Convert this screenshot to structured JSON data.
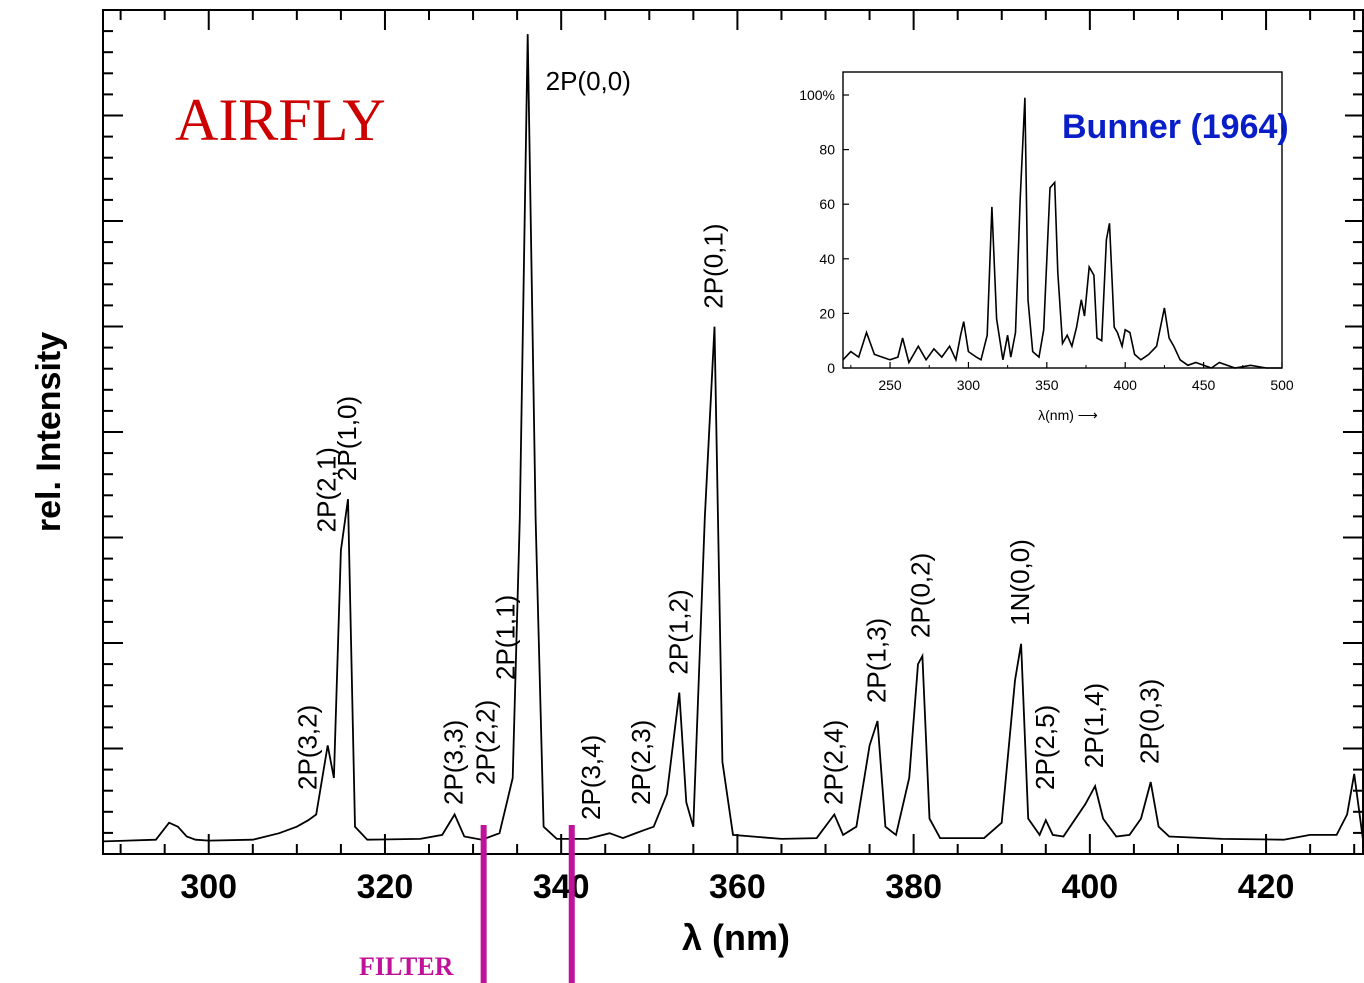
{
  "chart_data": [
    {
      "type": "line",
      "title": "AIRFLY",
      "xlabel": "λ (nm)",
      "ylabel": "rel. Intensity",
      "xlim": [
        288,
        431
      ],
      "ylim": [
        0,
        1.0
      ],
      "x_ticks": [
        300,
        320,
        340,
        360,
        380,
        400,
        420
      ],
      "y_tick_labels_shown": false,
      "series": [
        {
          "x": [
            288,
            294,
            295.5,
            296.5,
            297.5,
            298.5,
            300,
            305,
            308,
            310,
            311.3,
            312.2,
            313.5,
            314.2,
            315,
            315.8,
            316.6,
            318,
            324,
            326.5,
            327.9,
            329,
            331,
            333,
            334.5,
            335.3,
            336.2,
            337.1,
            338,
            339.5,
            343,
            345.5,
            347,
            349.2,
            350.5,
            352,
            353.4,
            354.2,
            355,
            356.3,
            357.4,
            358.3,
            359.5,
            365,
            369,
            371,
            372,
            373.5,
            375,
            375.9,
            376.8,
            378,
            379.5,
            380.5,
            381,
            381.8,
            383,
            388,
            390,
            391.5,
            392.2,
            393,
            394.3,
            395,
            395.8,
            397,
            399.5,
            400.6,
            401.5,
            403,
            404.5,
            405.8,
            406.9,
            407.8,
            409,
            415,
            422,
            425,
            428,
            429.2,
            430,
            431
          ],
          "y": [
            0.002,
            0.004,
            0.025,
            0.02,
            0.008,
            0.004,
            0.003,
            0.004,
            0.012,
            0.02,
            0.028,
            0.035,
            0.12,
            0.08,
            0.36,
            0.423,
            0.02,
            0.004,
            0.005,
            0.01,
            0.035,
            0.008,
            0.004,
            0.012,
            0.08,
            0.4,
            0.995,
            0.4,
            0.02,
            0.005,
            0.005,
            0.012,
            0.006,
            0.015,
            0.02,
            0.06,
            0.185,
            0.05,
            0.02,
            0.4,
            0.635,
            0.1,
            0.01,
            0.005,
            0.006,
            0.035,
            0.01,
            0.02,
            0.12,
            0.15,
            0.02,
            0.01,
            0.08,
            0.22,
            0.23,
            0.03,
            0.006,
            0.006,
            0.025,
            0.2,
            0.245,
            0.03,
            0.01,
            0.028,
            0.01,
            0.008,
            0.048,
            0.07,
            0.03,
            0.008,
            0.01,
            0.03,
            0.075,
            0.02,
            0.008,
            0.005,
            0.004,
            0.01,
            0.01,
            0.035,
            0.085,
            0.004
          ]
        }
      ],
      "annotations": [
        {
          "text": "2P(3,2)",
          "x": 311.3
        },
        {
          "text": "2P(2,1)",
          "x": 313.5
        },
        {
          "text": "2P(1,0)",
          "x": 315.8
        },
        {
          "text": "2P(3,3)",
          "x": 327.9
        },
        {
          "text": "2P(2,2)",
          "x": 331.5
        },
        {
          "text": "2P(1,1)",
          "x": 333.8
        },
        {
          "text": "2P(0,0)",
          "x": 337.1
        },
        {
          "text": "2P(3,4)",
          "x": 343.5
        },
        {
          "text": "2P(2,3)",
          "x": 349.2
        },
        {
          "text": "2P(1,2)",
          "x": 353.4
        },
        {
          "text": "2P(0,1)",
          "x": 357.4
        },
        {
          "text": "2P(2,4)",
          "x": 371
        },
        {
          "text": "2P(1,3)",
          "x": 375.9
        },
        {
          "text": "2P(0,2)",
          "x": 380.9
        },
        {
          "text": "1N(0,0)",
          "x": 392.2
        },
        {
          "text": "2P(2,5)",
          "x": 395
        },
        {
          "text": "2P(1,4)",
          "x": 400.6
        },
        {
          "text": "2P(0,3)",
          "x": 406.9
        }
      ],
      "filter": {
        "label": "FILTER",
        "range": [
          331.2,
          341.2
        ],
        "color": "#c0119a"
      }
    },
    {
      "type": "line",
      "title": "Bunner (1964)",
      "xlabel": "λ(nm) ⟶",
      "ylabel": "",
      "xlim": [
        220,
        500
      ],
      "ylim": [
        0,
        100
      ],
      "x_ticks": [
        250,
        300,
        350,
        400,
        450,
        500
      ],
      "y_ticks": [
        0,
        20,
        40,
        60,
        80,
        100
      ],
      "y_tick_labels": [
        "0",
        "20",
        "40",
        "60",
        "80",
        "100%"
      ],
      "series": [
        {
          "x": [
            220,
            225,
            230,
            235,
            240,
            245,
            250,
            255,
            258,
            262,
            268,
            273,
            278,
            283,
            288,
            292,
            295,
            297,
            300,
            305,
            308,
            312,
            315,
            318,
            322,
            325,
            327,
            330,
            333,
            336,
            338,
            341,
            345,
            348,
            352,
            355,
            357,
            360,
            363,
            366,
            369,
            372,
            374,
            377,
            380,
            382,
            385,
            388,
            390,
            393,
            395,
            398,
            400,
            403,
            406,
            410,
            415,
            420,
            425,
            428,
            431,
            435,
            440,
            445,
            450,
            455,
            460,
            470,
            480,
            490,
            500
          ],
          "y": [
            3,
            6,
            4,
            13,
            5,
            4,
            3,
            4,
            11,
            2,
            8,
            3,
            7,
            4,
            8,
            3,
            12,
            17,
            6,
            4,
            3,
            12,
            59,
            18,
            3,
            12,
            4,
            13,
            62,
            99,
            25,
            6,
            4,
            14,
            66,
            68,
            35,
            9,
            12,
            8,
            15,
            25,
            19,
            37,
            34,
            11,
            10,
            47,
            53,
            15,
            13,
            8,
            14,
            13,
            5,
            3,
            5,
            8,
            22,
            11,
            8,
            3,
            1,
            2,
            1,
            0,
            2,
            0,
            1,
            0,
            0
          ]
        }
      ]
    }
  ],
  "colors": {
    "title_main": "#cc0000",
    "title_inset": "#0a1ec8",
    "filter": "#c0119a",
    "line": "#000000"
  }
}
